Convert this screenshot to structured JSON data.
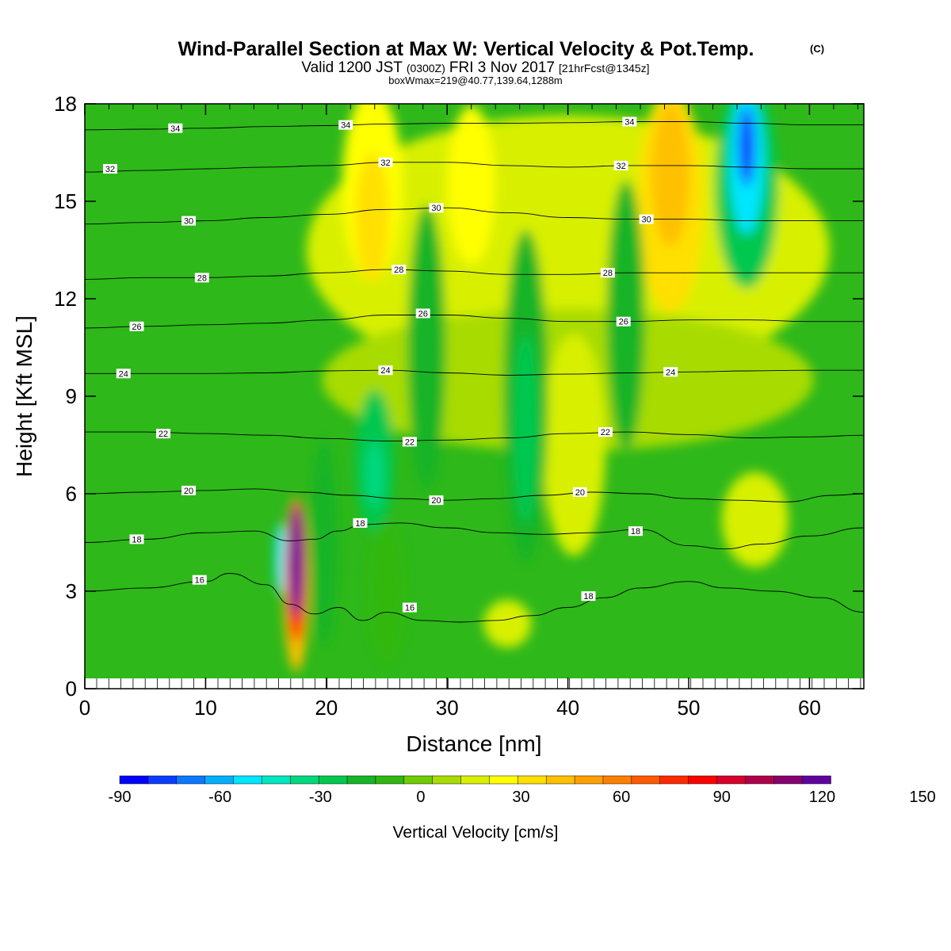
{
  "header": {
    "title": "Wind-Parallel Section at Max W: Vertical Velocity & Pot.Temp.",
    "copyright": "(C)",
    "valid_a": "Valid 1200 JST",
    "valid_b": "(0300Z)",
    "valid_c": "FRI 3 Nov 2017",
    "valid_d": "[21hrFcst@1345z]",
    "boxinfo": "boxWmax=219@40.77,139.64,1288m"
  },
  "chart_data": {
    "type": "heatmap",
    "title": "Wind-Parallel Section at Max W: Vertical Velocity & Pot.Temp.",
    "xlabel": "Distance [nm]",
    "ylabel": "Height [Kft MSL]",
    "xlim": [
      0,
      64.5
    ],
    "ylim": [
      0,
      18
    ],
    "xticks": [
      0,
      10,
      20,
      30,
      40,
      50,
      60
    ],
    "yticks": [
      0,
      3,
      6,
      9,
      12,
      15,
      18
    ],
    "colorbar": {
      "label": "Vertical Velocity [cm/s]",
      "min": -90,
      "step": 8.5,
      "tick_values": [
        -90,
        -60,
        -30,
        0,
        30,
        60,
        90,
        120,
        150
      ],
      "colors": [
        "#0000ff",
        "#0a3cff",
        "#0a78ff",
        "#00b0ff",
        "#00e6ff",
        "#00e8c0",
        "#00d880",
        "#00c850",
        "#18b428",
        "#30b810",
        "#70cc00",
        "#a8dc00",
        "#d8f000",
        "#ffff00",
        "#ffe000",
        "#ffc000",
        "#ffa000",
        "#ff8000",
        "#ff5a00",
        "#ff2a00",
        "#ff0000",
        "#d8002a",
        "#b0004a",
        "#880070",
        "#6000a0"
      ]
    },
    "velocity_features_cm_s": [
      {
        "x": 17.5,
        "y": 3.8,
        "value": 219
      },
      {
        "x": 16.2,
        "y": 4.0,
        "value": -60
      },
      {
        "x": 23.8,
        "y": 14.5,
        "value": 35
      },
      {
        "x": 48.5,
        "y": 15.5,
        "value": 40
      },
      {
        "x": 54.8,
        "y": 16.2,
        "value": -75
      },
      {
        "x": 36.5,
        "y": 8.5,
        "value": -25
      },
      {
        "x": 24.0,
        "y": 6.8,
        "value": -30
      },
      {
        "x": 40.5,
        "y": 8.0,
        "value": 20
      }
    ],
    "theta_contours": [
      {
        "label": "16",
        "label_positions": [
          [
            9.5,
            3.35
          ],
          [
            26.9,
            2.5
          ]
        ],
        "x": [
          0,
          5,
          10,
          12,
          15,
          17,
          19,
          21,
          23,
          25,
          28,
          31,
          34,
          37,
          40,
          43,
          46,
          50,
          53,
          57,
          61,
          64.5
        ],
        "y": [
          3.0,
          3.1,
          3.3,
          3.55,
          3.2,
          2.6,
          2.3,
          2.5,
          2.1,
          2.35,
          2.1,
          2.05,
          2.1,
          2.25,
          2.5,
          2.8,
          3.1,
          3.3,
          3.1,
          3.0,
          2.8,
          2.35
        ]
      },
      {
        "label": "18",
        "label_positions": [
          [
            4.3,
            4.6
          ],
          [
            22.8,
            5.1
          ],
          [
            45.6,
            4.85
          ],
          [
            41.7,
            2.85
          ]
        ],
        "x": [
          0,
          5,
          10,
          14,
          17,
          19,
          21,
          23,
          26,
          30,
          34,
          38,
          42,
          46,
          50,
          53,
          56,
          60,
          64.5
        ],
        "y": [
          4.5,
          4.6,
          4.8,
          4.85,
          4.55,
          4.6,
          4.85,
          5.05,
          5.1,
          4.95,
          4.8,
          4.75,
          4.8,
          4.9,
          4.4,
          4.3,
          4.45,
          4.7,
          4.95
        ]
      },
      {
        "label": "20",
        "label_positions": [
          [
            8.6,
            6.1
          ],
          [
            29.1,
            5.8
          ],
          [
            41.0,
            6.05
          ]
        ],
        "x": [
          0,
          5,
          10,
          14,
          18,
          22,
          26,
          30,
          34,
          38,
          42,
          46,
          50,
          54,
          58,
          62,
          64.5
        ],
        "y": [
          6.0,
          6.05,
          6.1,
          6.15,
          6.05,
          5.95,
          5.85,
          5.8,
          5.85,
          5.95,
          6.05,
          6.0,
          5.85,
          5.8,
          5.75,
          5.95,
          6.0
        ]
      },
      {
        "label": "22",
        "label_positions": [
          [
            6.5,
            7.85
          ],
          [
            26.9,
            7.6
          ],
          [
            43.1,
            7.9
          ]
        ],
        "x": [
          0,
          5,
          10,
          15,
          20,
          25,
          30,
          35,
          40,
          45,
          50,
          55,
          60,
          64.5
        ],
        "y": [
          7.9,
          7.9,
          7.85,
          7.8,
          7.7,
          7.62,
          7.65,
          7.72,
          7.85,
          7.9,
          7.82,
          7.72,
          7.75,
          7.8
        ]
      },
      {
        "label": "24",
        "label_positions": [
          [
            3.2,
            9.7
          ],
          [
            24.9,
            9.8
          ],
          [
            48.5,
            9.75
          ]
        ],
        "x": [
          0,
          5,
          10,
          15,
          20,
          25,
          30,
          35,
          40,
          45,
          50,
          55,
          60,
          64.5
        ],
        "y": [
          9.7,
          9.7,
          9.7,
          9.72,
          9.78,
          9.8,
          9.72,
          9.65,
          9.68,
          9.72,
          9.75,
          9.78,
          9.8,
          9.8
        ]
      },
      {
        "label": "26",
        "label_positions": [
          [
            4.3,
            11.15
          ],
          [
            28.0,
            11.55
          ],
          [
            44.6,
            11.3
          ]
        ],
        "x": [
          0,
          5,
          10,
          15,
          20,
          25,
          30,
          35,
          40,
          45,
          50,
          55,
          60,
          64.5
        ],
        "y": [
          11.1,
          11.15,
          11.2,
          11.25,
          11.35,
          11.5,
          11.5,
          11.4,
          11.3,
          11.3,
          11.35,
          11.35,
          11.3,
          11.3
        ]
      },
      {
        "label": "28",
        "label_positions": [
          [
            9.7,
            12.65
          ],
          [
            26.0,
            12.9
          ],
          [
            43.3,
            12.8
          ]
        ],
        "x": [
          0,
          5,
          10,
          15,
          20,
          25,
          30,
          35,
          40,
          45,
          50,
          55,
          60,
          64.5
        ],
        "y": [
          12.6,
          12.65,
          12.65,
          12.7,
          12.8,
          12.9,
          12.85,
          12.75,
          12.75,
          12.8,
          12.8,
          12.8,
          12.8,
          12.8
        ]
      },
      {
        "label": "30",
        "label_positions": [
          [
            8.6,
            14.4
          ],
          [
            29.1,
            14.8
          ],
          [
            46.5,
            14.45
          ]
        ],
        "x": [
          0,
          5,
          10,
          15,
          20,
          25,
          30,
          35,
          40,
          45,
          50,
          55,
          60,
          64.5
        ],
        "y": [
          14.3,
          14.35,
          14.4,
          14.5,
          14.6,
          14.75,
          14.8,
          14.65,
          14.5,
          14.45,
          14.45,
          14.4,
          14.4,
          14.4
        ]
      },
      {
        "label": "32",
        "label_positions": [
          [
            2.1,
            16.0
          ],
          [
            24.9,
            16.2
          ],
          [
            44.4,
            16.1
          ]
        ],
        "x": [
          0,
          5,
          10,
          15,
          20,
          25,
          30,
          35,
          40,
          45,
          50,
          55,
          60,
          64.5
        ],
        "y": [
          15.9,
          15.95,
          16.0,
          16.05,
          16.1,
          16.2,
          16.2,
          16.1,
          16.05,
          16.1,
          16.1,
          16.05,
          16.0,
          16.0
        ]
      },
      {
        "label": "34",
        "label_positions": [
          [
            7.5,
            17.25
          ],
          [
            21.6,
            17.35
          ],
          [
            45.1,
            17.45
          ]
        ],
        "x": [
          0,
          5,
          10,
          15,
          20,
          25,
          30,
          35,
          40,
          45,
          50,
          55,
          60,
          64.5
        ],
        "y": [
          17.2,
          17.22,
          17.25,
          17.3,
          17.33,
          17.38,
          17.4,
          17.4,
          17.42,
          17.45,
          17.45,
          17.4,
          17.35,
          17.35
        ]
      }
    ]
  }
}
